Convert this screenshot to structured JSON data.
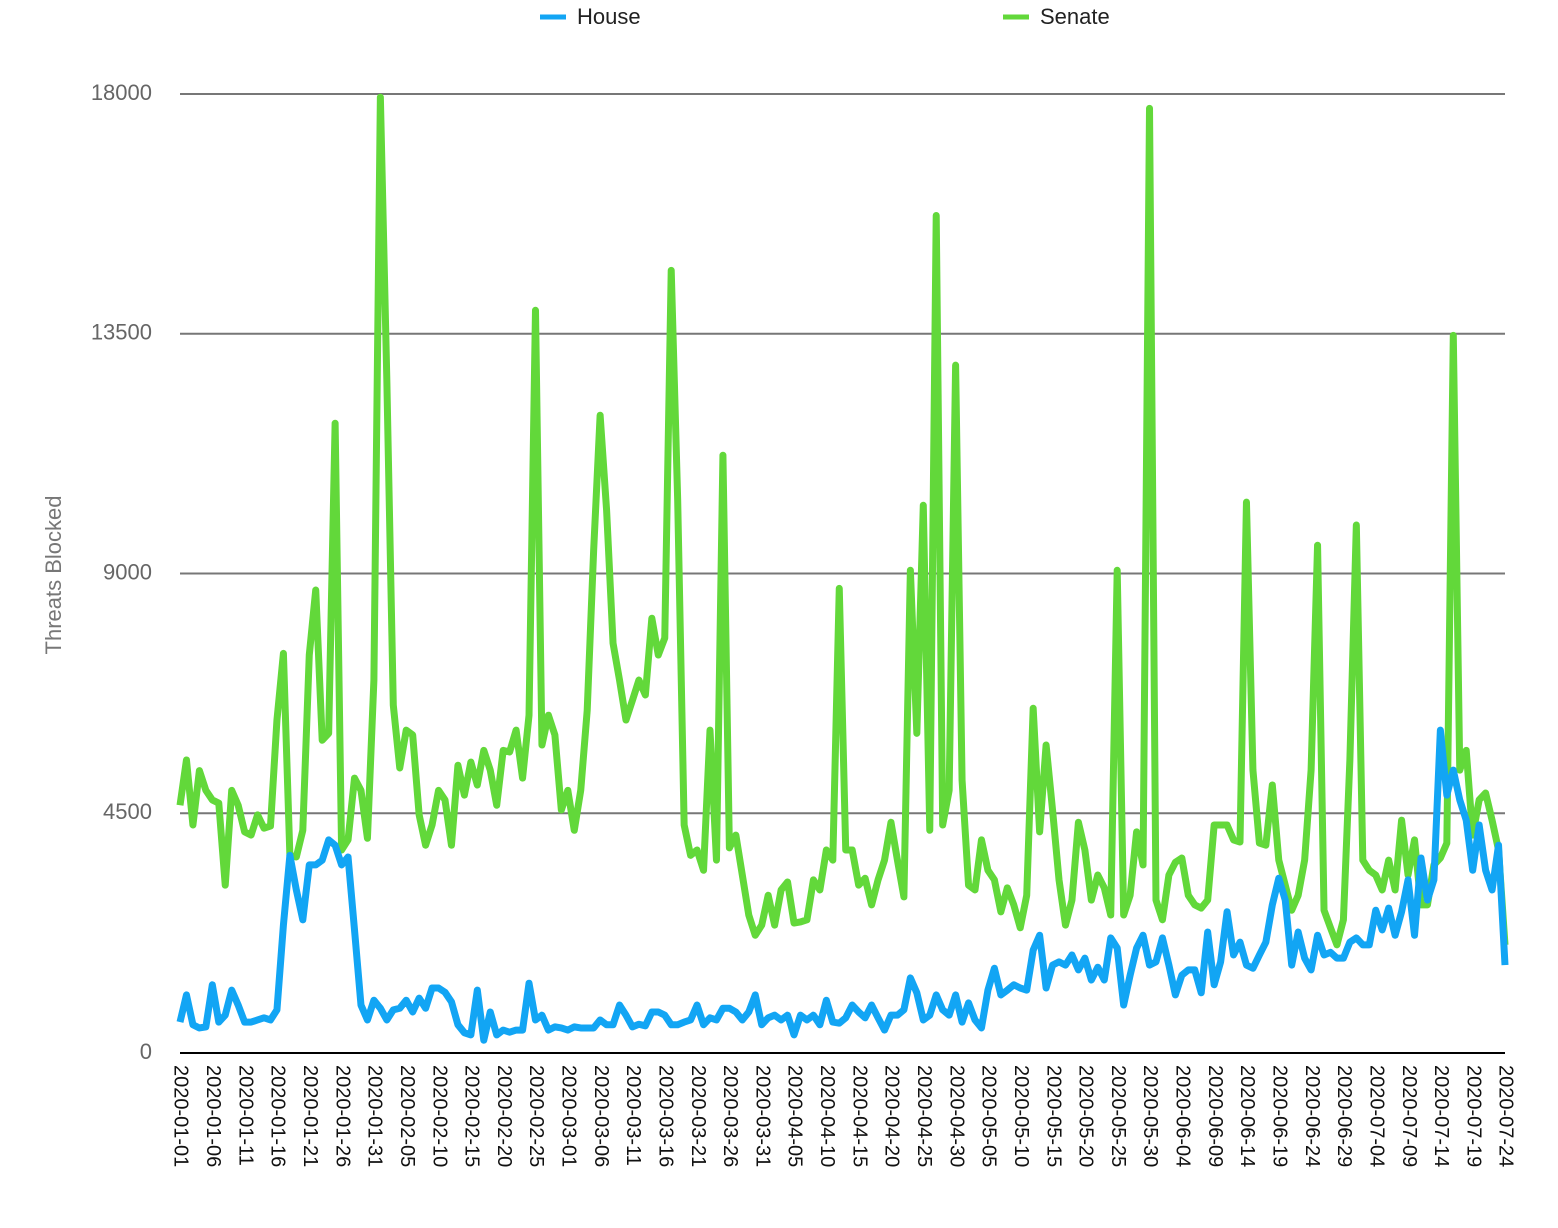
{
  "chart_data": {
    "type": "line",
    "ylabel": "Threats Blocked",
    "ylim": [
      0,
      18000
    ],
    "yticks": [
      0,
      4500,
      9000,
      13500,
      18000
    ],
    "grid": true,
    "legend": "top",
    "categories": [
      "2020-01-01",
      null,
      null,
      null,
      null,
      "2020-01-06",
      null,
      null,
      null,
      null,
      "2020-01-11",
      null,
      null,
      null,
      null,
      "2020-01-16",
      null,
      null,
      null,
      null,
      "2020-01-21",
      null,
      null,
      null,
      null,
      "2020-01-26",
      null,
      null,
      null,
      null,
      "2020-01-31",
      null,
      null,
      null,
      null,
      "2020-02-05",
      null,
      null,
      null,
      null,
      "2020-02-10",
      null,
      null,
      null,
      null,
      "2020-02-15",
      null,
      null,
      null,
      null,
      "2020-02-20",
      null,
      null,
      null,
      null,
      "2020-02-25",
      null,
      null,
      null,
      null,
      "2020-03-01",
      null,
      null,
      null,
      null,
      "2020-03-06",
      null,
      null,
      null,
      null,
      "2020-03-11",
      null,
      null,
      null,
      null,
      "2020-03-16",
      null,
      null,
      null,
      null,
      "2020-03-21",
      null,
      null,
      null,
      null,
      "2020-03-26",
      null,
      null,
      null,
      null,
      "2020-03-31",
      null,
      null,
      null,
      null,
      "2020-04-05",
      null,
      null,
      null,
      null,
      "2020-04-10",
      null,
      null,
      null,
      null,
      "2020-04-15",
      null,
      null,
      null,
      null,
      "2020-04-20",
      null,
      null,
      null,
      null,
      "2020-04-25",
      null,
      null,
      null,
      null,
      "2020-04-30",
      null,
      null,
      null,
      null,
      "2020-05-05",
      null,
      null,
      null,
      null,
      "2020-05-10",
      null,
      null,
      null,
      null,
      "2020-05-15",
      null,
      null,
      null,
      null,
      "2020-05-20",
      null,
      null,
      null,
      null,
      "2020-05-25",
      null,
      null,
      null,
      null,
      "2020-05-30",
      null,
      null,
      null,
      null,
      "2020-06-04",
      null,
      null,
      null,
      null,
      "2020-06-09",
      null,
      null,
      null,
      null,
      "2020-06-14",
      null,
      null,
      null,
      null,
      "2020-06-19",
      null,
      null,
      null,
      null,
      "2020-06-24",
      null,
      null,
      null,
      null,
      "2020-06-29",
      null,
      null,
      null,
      null,
      "2020-07-04",
      null,
      null,
      null,
      null,
      "2020-07-09",
      null,
      null,
      null,
      null,
      "2020-07-14",
      null,
      null,
      null,
      null,
      "2020-07-19",
      null,
      null,
      null,
      null,
      "2020-07-24"
    ],
    "series": [
      {
        "name": "House",
        "color": "#12a5f4",
        "values": [
          580,
          1090,
          530,
          470,
          490,
          1280,
          580,
          710,
          1180,
          900,
          580,
          580,
          620,
          660,
          620,
          810,
          2400,
          3710,
          3060,
          2500,
          3530,
          3530,
          3620,
          4000,
          3900,
          3530,
          3680,
          2310,
          900,
          620,
          990,
          840,
          620,
          810,
          840,
          990,
          770,
          1030,
          840,
          1220,
          1220,
          1140,
          960,
          530,
          380,
          340,
          1180,
          240,
          770,
          340,
          430,
          390,
          430,
          430,
          1310,
          620,
          710,
          430,
          490,
          470,
          430,
          490,
          470,
          470,
          470,
          620,
          530,
          530,
          900,
          710,
          490,
          540,
          510,
          770,
          770,
          710,
          530,
          530,
          580,
          620,
          900,
          530,
          660,
          620,
          840,
          840,
          770,
          620,
          770,
          1090,
          530,
          660,
          710,
          620,
          710,
          340,
          710,
          620,
          710,
          530,
          990,
          580,
          560,
          660,
          900,
          770,
          660,
          900,
          660,
          430,
          710,
          710,
          810,
          1410,
          1130,
          620,
          710,
          1090,
          810,
          710,
          1090,
          580,
          940,
          620,
          470,
          1180,
          1590,
          1090,
          1180,
          1280,
          1220,
          1180,
          1930,
          2210,
          1220,
          1650,
          1710,
          1650,
          1840,
          1560,
          1780,
          1370,
          1610,
          1370,
          2160,
          1970,
          900,
          1460,
          1970,
          2210,
          1650,
          1710,
          2160,
          1650,
          1090,
          1460,
          1560,
          1560,
          1130,
          2270,
          1280,
          1710,
          2650,
          1840,
          2080,
          1650,
          1590,
          1840,
          2080,
          2780,
          3280,
          2870,
          1650,
          2270,
          1780,
          1560,
          2210,
          1840,
          1890,
          1780,
          1780,
          2080,
          2160,
          2030,
          2030,
          2680,
          2310,
          2720,
          2210,
          2650,
          3250,
          2210,
          3660,
          2870,
          3250,
          6060,
          4840,
          5310,
          4750,
          4370,
          3430,
          4280,
          3430,
          3060,
          3900,
          1650
        ]
      },
      {
        "name": "Senate",
        "color": "#62d83a",
        "values": [
          4650,
          5500,
          4280,
          5300,
          4930,
          4750,
          4690,
          3150,
          4930,
          4650,
          4150,
          4090,
          4470,
          4220,
          4260,
          6250,
          7500,
          3710,
          3680,
          4180,
          7470,
          8690,
          5870,
          6000,
          11820,
          3810,
          4000,
          5160,
          4930,
          4030,
          7000,
          17940,
          12630,
          6530,
          5350,
          6060,
          5970,
          4470,
          3900,
          4280,
          4930,
          4750,
          3900,
          5400,
          4840,
          5460,
          5030,
          5680,
          5310,
          4650,
          5680,
          5650,
          6060,
          5160,
          6340,
          13940,
          5780,
          6340,
          5970,
          4560,
          4930,
          4180,
          4930,
          6430,
          9440,
          11970,
          10190,
          7690,
          7000,
          6250,
          6620,
          7000,
          6720,
          8160,
          7470,
          7790,
          14690,
          10380,
          4280,
          3710,
          3810,
          3430,
          6060,
          3620,
          11220,
          3850,
          4090,
          3340,
          2590,
          2210,
          2400,
          2960,
          2400,
          3060,
          3210,
          2440,
          2460,
          2500,
          3250,
          3060,
          3810,
          3620,
          8720,
          3810,
          3810,
          3150,
          3280,
          2780,
          3250,
          3620,
          4330,
          3620,
          2930,
          9060,
          6000,
          10280,
          4180,
          15720,
          4280,
          4930,
          12910,
          5120,
          3150,
          3060,
          4000,
          3430,
          3250,
          2650,
          3100,
          2780,
          2350,
          2960,
          6470,
          4150,
          5780,
          4560,
          3250,
          2400,
          2870,
          4330,
          3810,
          2870,
          3340,
          3100,
          2590,
          9060,
          2590,
          2960,
          4150,
          3530,
          17730,
          2870,
          2500,
          3340,
          3580,
          3660,
          2960,
          2780,
          2720,
          2870,
          4280,
          4280,
          4280,
          4000,
          3960,
          10340,
          5310,
          3940,
          3900,
          5030,
          3620,
          3150,
          2680,
          2960,
          3620,
          5310,
          9530,
          2680,
          2350,
          2030,
          2500,
          5500,
          9910,
          3620,
          3430,
          3340,
          3060,
          3620,
          3060,
          4370,
          3340,
          4000,
          2780,
          2780,
          3530,
          3660,
          3940,
          13470,
          5310,
          5680,
          4090,
          4750,
          4880,
          4370,
          3810,
          2030
        ]
      }
    ]
  }
}
